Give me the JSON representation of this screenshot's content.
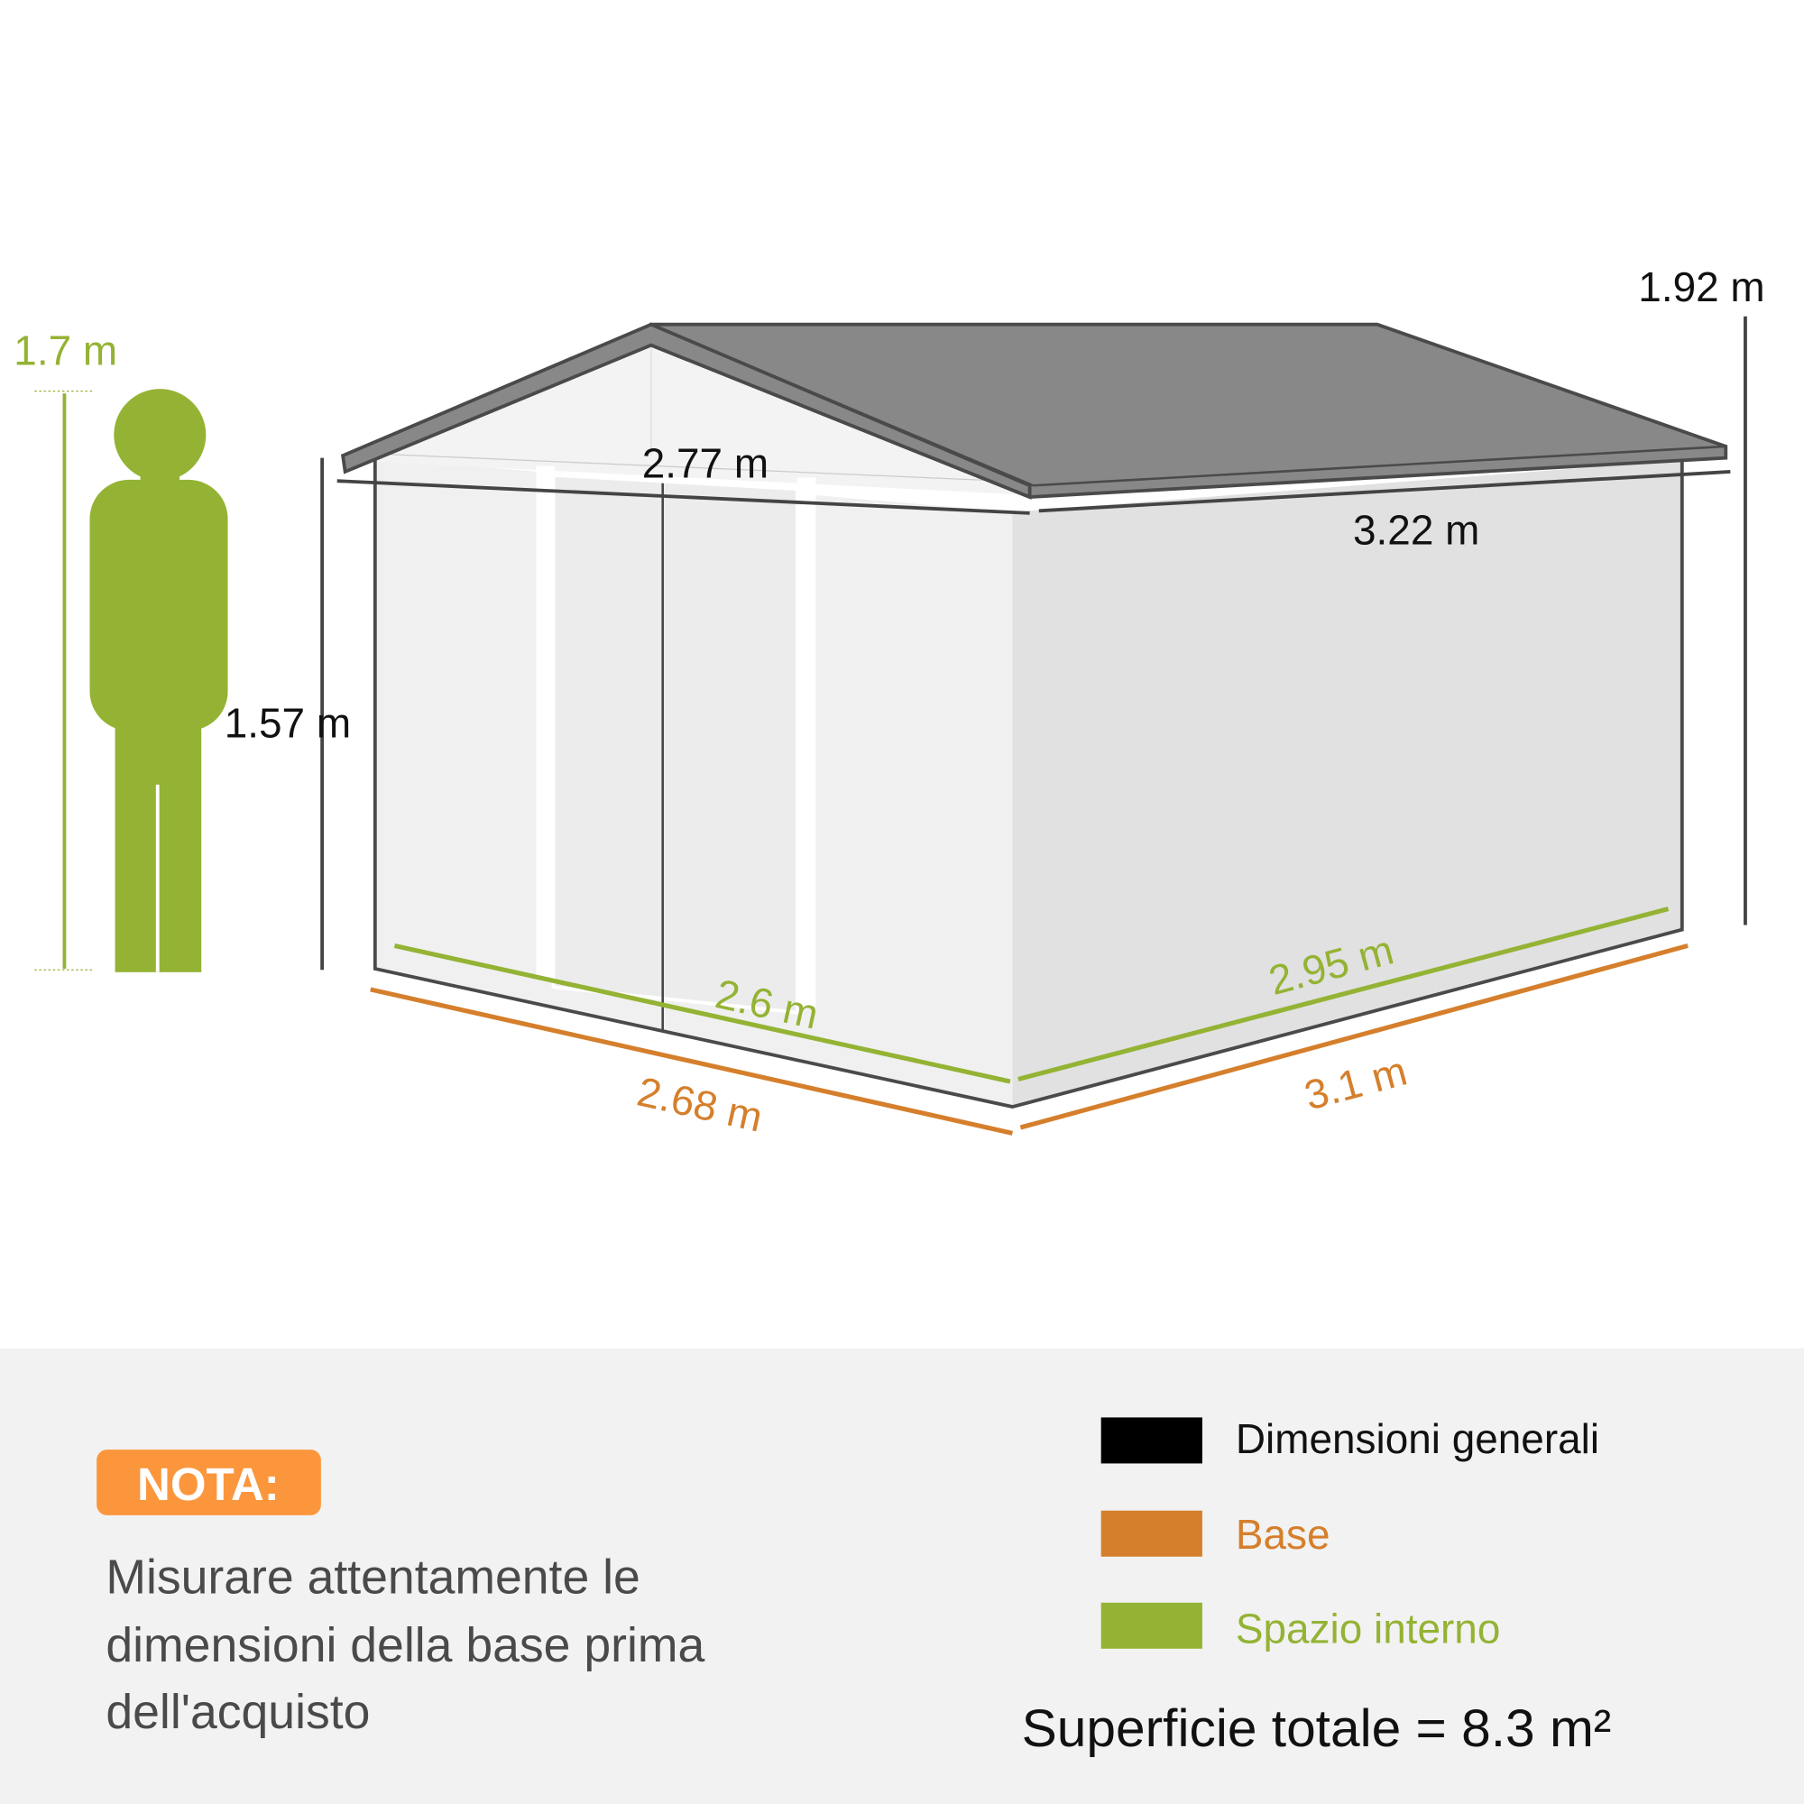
{
  "colors": {
    "general": "#000000",
    "base": "#d57f2c",
    "interior": "#94b334",
    "nota_badge": "#fb963c",
    "roof": "#888888",
    "panel_bg": "#f2f2f2"
  },
  "dimensions": {
    "person_height": "1.7 m",
    "total_height": "1.92 m",
    "wall_height": "1.57 m",
    "front_width": "2.77 m",
    "side_depth": "3.22 m",
    "base_front": "2.68 m",
    "base_side": "3.1 m",
    "interior_front": "2.6 m",
    "interior_side": "2.95 m"
  },
  "note": {
    "badge": "NOTA:",
    "lines": [
      "Misurare attentamente le",
      "dimensioni della base prima",
      "dell'acquisto"
    ]
  },
  "legend": {
    "items": [
      {
        "label": "Dimensioni generali",
        "color": "#000000"
      },
      {
        "label": "Base",
        "color": "#d57f2c"
      },
      {
        "label": "Spazio interno",
        "color": "#94b334"
      }
    ],
    "total_area": "Superficie totale = 8.3 m²"
  }
}
